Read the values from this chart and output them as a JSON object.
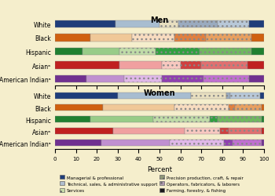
{
  "men": {
    "categories": [
      "White",
      "Black",
      "Hispanic",
      "Asianᵃ",
      "American Indianᵃ"
    ],
    "managerial": [
      29,
      17,
      13,
      31,
      15
    ],
    "technical": [
      21,
      20,
      18,
      20,
      18
    ],
    "services": [
      9,
      20,
      17,
      9,
      18
    ],
    "precision": [
      19,
      15,
      21,
      10,
      20
    ],
    "operators": [
      15,
      22,
      25,
      12,
      22
    ],
    "farming": [
      7,
      6,
      6,
      8,
      7
    ]
  },
  "women": {
    "categories": [
      "White",
      "Black",
      "Hispanic",
      "Asianᵃ",
      "American Indianᵃ"
    ],
    "managerial": [
      30,
      23,
      17,
      28,
      22
    ],
    "technical": [
      35,
      34,
      30,
      34,
      33
    ],
    "services": [
      17,
      26,
      27,
      17,
      26
    ],
    "precision": [
      2,
      3,
      4,
      4,
      4
    ],
    "operators": [
      14,
      13,
      21,
      16,
      14
    ],
    "farming": [
      2,
      1,
      1,
      1,
      1
    ]
  },
  "colors": {
    "managerial": "#1a3a7c",
    "technical": "#a8b8d0",
    "services": "#c8e0b0",
    "precision": "#b0c090",
    "operators": "#b090b0",
    "farming": "#1a1a2a"
  },
  "hatch": {
    "managerial": "",
    "technical": "",
    "services": "...",
    "precision": "...",
    "operators": "...",
    "farming": ""
  },
  "bg_color": "#f5f0d0",
  "title_men": "Men",
  "title_women": "Women",
  "xlabel": "Percent"
}
